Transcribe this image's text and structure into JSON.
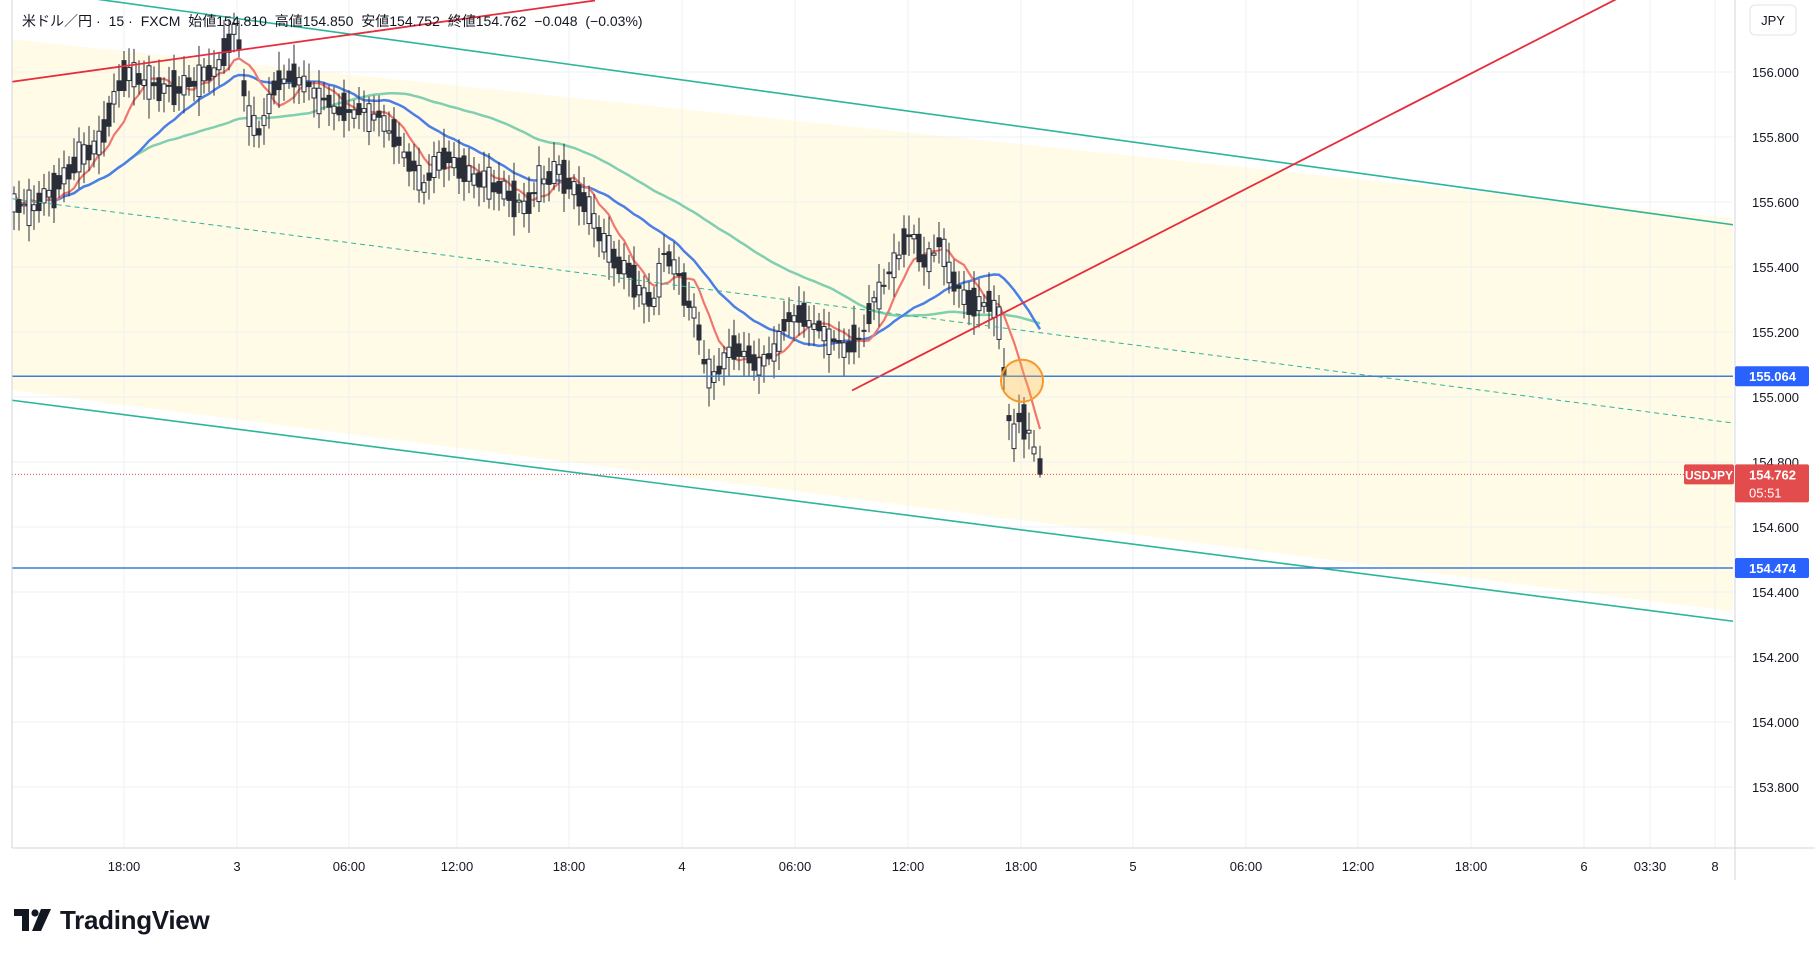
{
  "header": {
    "symbol_desc": "米ドル／円",
    "interval": "15",
    "source": "FXCM",
    "open_label": "始値",
    "open": "154.810",
    "high_label": "高値",
    "high": "154.850",
    "low_label": "安値",
    "low": "154.752",
    "close_label": "終値",
    "close": "154.762",
    "change": "−0.048",
    "change_pct": "(−0.03%)"
  },
  "currency_label": "JPY",
  "brand": "TradingView",
  "chart_data": {
    "type": "candlestick",
    "y_axis": {
      "min": 153.6,
      "max": 156.2,
      "ticks": [
        "156.000",
        "155.800",
        "155.600",
        "155.400",
        "155.200",
        "155.000",
        "154.800",
        "154.600",
        "154.400",
        "154.200",
        "154.000",
        "153.800"
      ]
    },
    "x_axis": {
      "ticks": [
        "18:00",
        "3",
        "06:00",
        "12:00",
        "18:00",
        "4",
        "06:00",
        "12:00",
        "18:00",
        "5",
        "06:00",
        "12:00",
        "18:00",
        "6",
        "03:30",
        "8"
      ]
    },
    "price_labels": [
      {
        "value": 155.064,
        "text": "155.064",
        "color": "#2962ff"
      },
      {
        "value": 154.474,
        "text": "154.474",
        "color": "#2962ff"
      }
    ],
    "last_price": {
      "symbol": "USDJPY",
      "value": 154.762,
      "text": "154.762",
      "countdown": "05:51",
      "color": "#e34c4c"
    },
    "horizontal_lines": [
      155.064,
      154.474
    ],
    "colors": {
      "up": "#26a69a",
      "down": "#ef5350",
      "candle": "#2a2e39",
      "ma_fast": "#f0776f",
      "ma_mid": "#4c7ee8",
      "ma_slow": "#7fcfb0",
      "channel": "#2bb59b",
      "trend": "#e52d3d",
      "hline": "#3d7fd0",
      "highlight": "#ffb74d"
    }
  }
}
